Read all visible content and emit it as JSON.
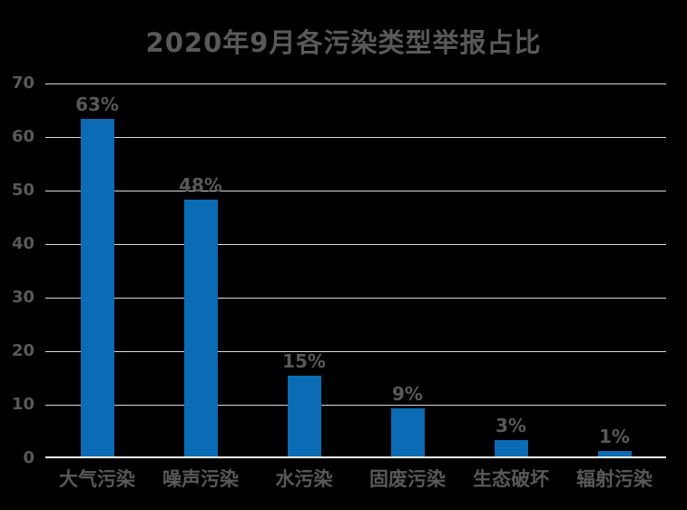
{
  "page": {
    "background": "#000000"
  },
  "chart_data": {
    "type": "bar",
    "title": "2020年9月各污染类型举报占比",
    "categories": [
      "大气污染",
      "噪声污染",
      "水污染",
      "固废污染",
      "生态破坏",
      "辐射污染"
    ],
    "values": [
      63,
      48,
      15,
      9,
      3,
      1
    ],
    "data_labels": [
      "63%",
      "48%",
      "15%",
      "9%",
      "3%",
      "1%"
    ],
    "xlabel": "",
    "ylabel": "",
    "ylim": [
      0,
      70
    ],
    "yticks": [
      0,
      10,
      20,
      30,
      40,
      50,
      60,
      70
    ],
    "grid": true,
    "legend": "none",
    "colors": {
      "background": "#000000",
      "bar": "#0B6BB5",
      "text": "#595959",
      "gridline": "#D9D9D9",
      "axis_line": "#FFFFFF"
    }
  }
}
